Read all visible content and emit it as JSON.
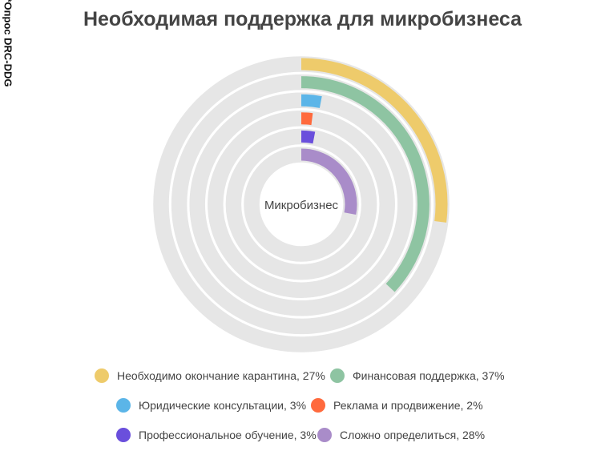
{
  "chart_data": {
    "type": "radial-bar",
    "title": "Необходимая поддержка для микробизнеса",
    "center_label": "Микробизнес",
    "note": "*Опрос DRC-DDG",
    "unit": "%",
    "track_color": "#e6e6e6",
    "max": 100,
    "series": [
      {
        "name": "Необходимо окончание карантина, 27%",
        "value": 27,
        "color": "#eecb6b"
      },
      {
        "name": "Финансовая поддержка, 37%",
        "value": 37,
        "color": "#8ec4a2"
      },
      {
        "name": "Юридические консультации, 3%",
        "value": 3,
        "color": "#5bb5e8"
      },
      {
        "name": "Реклама и продвижение, 2%",
        "value": 2,
        "color": "#ff6a3d"
      },
      {
        "name": "Профессиональное обучение, 3%",
        "value": 3,
        "color": "#6a4fdc"
      },
      {
        "name": "Сложно определиться, 28%",
        "value": 28,
        "color": "#a98cc9"
      }
    ],
    "legend_position": "bottom"
  }
}
